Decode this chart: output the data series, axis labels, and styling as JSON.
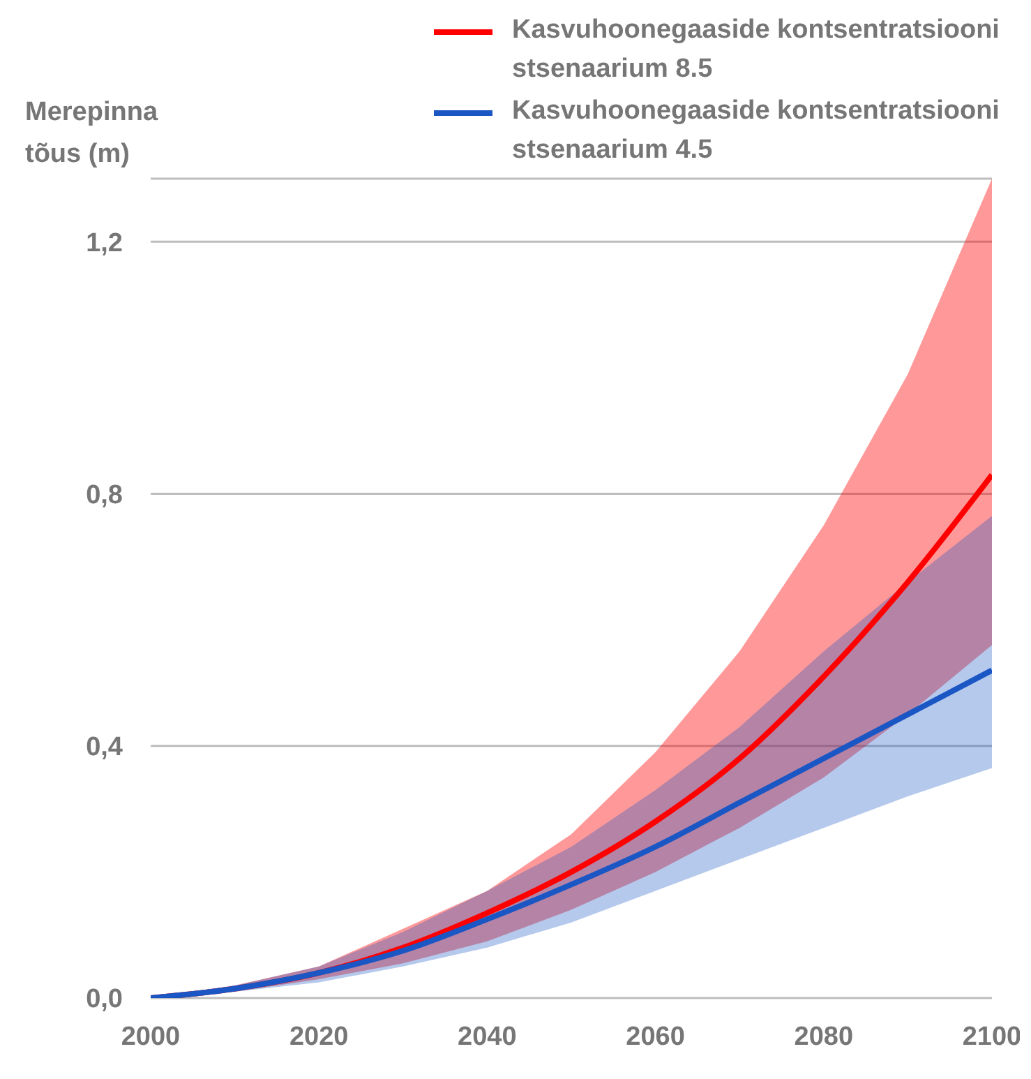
{
  "chart_data": {
    "type": "line",
    "ylabel": "Merepinna tõus (m)",
    "x": [
      2000,
      2010,
      2020,
      2030,
      2040,
      2050,
      2060,
      2070,
      2080,
      2090,
      2100
    ],
    "series": [
      {
        "name": "Kasvuhoonegaaside kontsentratsiooni stsenaarium 8.5",
        "color": "#ff0000",
        "values": [
          0,
          0.015,
          0.04,
          0.08,
          0.135,
          0.2,
          0.28,
          0.38,
          0.51,
          0.66,
          0.83
        ],
        "lower": [
          0,
          0.01,
          0.03,
          0.055,
          0.09,
          0.14,
          0.2,
          0.27,
          0.35,
          0.45,
          0.56
        ],
        "upper": [
          0,
          0.02,
          0.05,
          0.11,
          0.17,
          0.26,
          0.39,
          0.55,
          0.75,
          0.99,
          1.3
        ]
      },
      {
        "name": "Kasvuhoonegaaside kontsentratsiooni stsenaarium 4.5",
        "color": "#1a56c4",
        "values": [
          0,
          0.015,
          0.04,
          0.075,
          0.125,
          0.18,
          0.24,
          0.31,
          0.38,
          0.45,
          0.52
        ],
        "lower": [
          0,
          0.01,
          0.025,
          0.05,
          0.08,
          0.12,
          0.17,
          0.22,
          0.27,
          0.32,
          0.365
        ],
        "upper": [
          0,
          0.02,
          0.05,
          0.105,
          0.17,
          0.24,
          0.33,
          0.43,
          0.55,
          0.66,
          0.765
        ]
      }
    ],
    "xlim": [
      2000,
      2100
    ],
    "xticks": [
      2000,
      2020,
      2040,
      2060,
      2080,
      2100
    ],
    "ylim": [
      0,
      1.3
    ],
    "yticks": [
      {
        "value": 0,
        "label": "0,0"
      },
      {
        "value": 0.4,
        "label": "0,4"
      },
      {
        "value": 0.8,
        "label": "0,8"
      },
      {
        "value": 1.2,
        "label": "1,2"
      }
    ],
    "grid": "y",
    "legend": "top right",
    "line_style": "solid",
    "marker": "none"
  }
}
